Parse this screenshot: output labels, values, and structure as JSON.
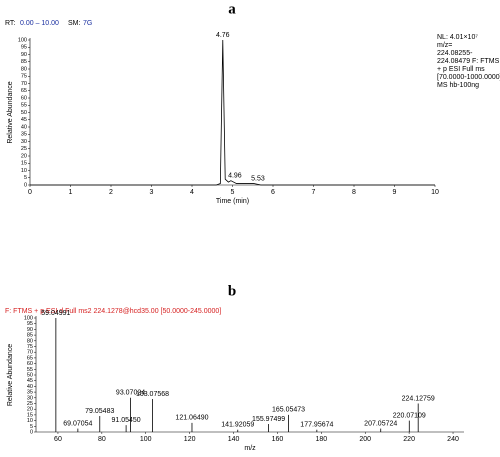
{
  "chart_data": [
    {
      "type": "line",
      "panel_label": "a",
      "rt_label": "RT:",
      "rt_range": "0.00 – 10.00",
      "sm_label": "SM:",
      "sm_value": "7G",
      "x_label": "Time (min)",
      "y_label": "Relative Abundance",
      "info": [
        "NL: 4.01×10⁷",
        "m/z=",
        "224.08255-",
        "224.08479 F: FTMS",
        "+ p ESI Full ms",
        "[70.0000-1000.0000]",
        "MS hb-100ng"
      ],
      "x": [
        0,
        4.6,
        4.7,
        4.76,
        4.82,
        4.9,
        4.96,
        5.1,
        5.4,
        5.53,
        5.7,
        10
      ],
      "series": [
        {
          "color": "#000000",
          "values": [
            0,
            0,
            1,
            100,
            4,
            2,
            3,
            1,
            1,
            1,
            0,
            0
          ]
        }
      ],
      "peaks": {
        "x": [
          4.76,
          4.96,
          5.53
        ],
        "y": [
          100,
          3,
          1
        ]
      },
      "xlim": [
        0,
        10
      ],
      "xticks": [
        0,
        1,
        2,
        3,
        4,
        5,
        6,
        7,
        8,
        9,
        10
      ],
      "ylim": [
        0,
        100
      ],
      "yticks": [
        0,
        5,
        10,
        15,
        20,
        25,
        30,
        35,
        40,
        45,
        50,
        55,
        60,
        65,
        70,
        75,
        80,
        85,
        90,
        95,
        100
      ]
    },
    {
      "type": "stem",
      "panel_label": "b",
      "scan_header": "F: FTMS + p ESI d Full ms2 224.1278@hcd35.00 [50.0000-245.0000]",
      "x_label": "m/z",
      "y_label": "Relative Abundance",
      "color": "#000000",
      "x": [
        59.04991,
        69.07054,
        79.05483,
        91.0545,
        93.07024,
        103.07568,
        121.0649,
        141.92059,
        155.97499,
        165.05473,
        177.95674,
        207.05724,
        220.07109,
        224.12759
      ],
      "x_labels": [
        "59.04991",
        "69.07054",
        "79.05483",
        "91.05450",
        "93.07024",
        "103.07568",
        "121.06490",
        "141.92059",
        "155.97499",
        "165.05473",
        "177.95674",
        "207.05724",
        "220.07109",
        "224.12759"
      ],
      "values": [
        100,
        3,
        14,
        6,
        30,
        29,
        8,
        2,
        7,
        15,
        2,
        3,
        10,
        25
      ],
      "xlim": [
        50,
        245
      ],
      "xticks": [
        60,
        80,
        100,
        120,
        140,
        160,
        180,
        200,
        220,
        240
      ],
      "ylim": [
        0,
        100
      ],
      "yticks": [
        0,
        5,
        10,
        15,
        20,
        25,
        30,
        35,
        40,
        45,
        50,
        55,
        60,
        65,
        70,
        75,
        80,
        85,
        90,
        95,
        100
      ]
    }
  ]
}
